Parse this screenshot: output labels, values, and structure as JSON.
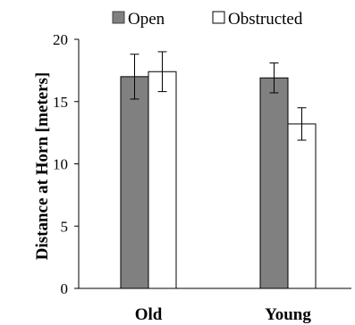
{
  "chart_data": {
    "type": "bar",
    "categories": [
      "Old",
      "Young"
    ],
    "series": [
      {
        "name": "Open",
        "values": [
          17.0,
          16.9
        ],
        "error": [
          1.8,
          1.2
        ],
        "color": "#808080"
      },
      {
        "name": "Obstructed",
        "values": [
          17.4,
          13.2
        ],
        "error": [
          1.6,
          1.3
        ],
        "color": "#ffffff"
      }
    ],
    "ylabel": "Distance at Horn [meters]",
    "xlabel": "",
    "ylim": [
      0,
      20
    ],
    "yticks": [
      0,
      5,
      10,
      15,
      20
    ],
    "legend_position": "top",
    "grid": false
  }
}
